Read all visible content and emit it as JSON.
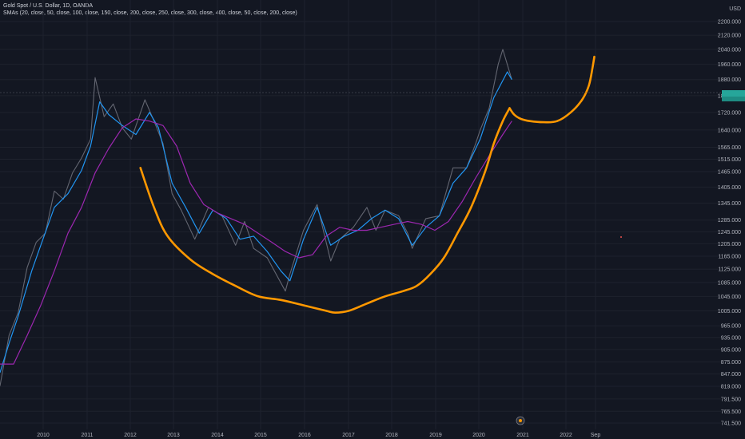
{
  "header": {
    "symbol_line": "Gold Spot / U.S. Dollar, 1D, OANDA",
    "sma_line": "SMAs (20, close, 50, close, 100, close, 150, close, 200, close, 250, close, 300, close, 400, close, 50, close, 200, close)"
  },
  "currency": "USD",
  "colors": {
    "background": "#131722",
    "price": "#787b86",
    "sma_fast": "#2196f3",
    "sma_slow": "#9c27b0",
    "cup_drawing": "#ff9800",
    "price_tag": "#26a69a"
  },
  "chart_data": {
    "type": "line",
    "title": "Gold Spot / U.S. Dollar, 1D, OANDA",
    "y_scale": "log",
    "ylim": [
      730,
      2420
    ],
    "y_ticks": [
      "741.500",
      "765.500",
      "791.500",
      "819.000",
      "847.000",
      "875.000",
      "905.000",
      "935.000",
      "965.000",
      "1005.000",
      "1045.000",
      "1085.000",
      "1125.000",
      "1165.000",
      "1205.000",
      "1245.000",
      "1285.000",
      "1345.000",
      "1405.000",
      "1465.000",
      "1515.000",
      "1565.000",
      "1640.000",
      "1720.000",
      "1800.000",
      "1880.000",
      "1960.000",
      "2040.000",
      "2120.000",
      "2200.000"
    ],
    "x_ticks": [
      "2010",
      "2011",
      "2012",
      "2013",
      "2014",
      "2015",
      "2016",
      "2017",
      "2018",
      "2019",
      "2020",
      "2021",
      "2022",
      "Sep"
    ],
    "grid": true,
    "series": [
      {
        "name": "",
        "role": "price",
        "x": [
          2009.6,
          2009.8,
          2010.0,
          2010.2,
          2010.4,
          2010.6,
          2010.8,
          2011.0,
          2011.2,
          2011.4,
          2011.6,
          2011.7,
          2011.9,
          2012.1,
          2012.3,
          2012.5,
          2012.8,
          2013.0,
          2013.2,
          2013.4,
          2013.6,
          2013.9,
          2014.2,
          2014.5,
          2014.8,
          2015.0,
          2015.2,
          2015.5,
          2015.9,
          2016.0,
          2016.3,
          2016.6,
          2016.9,
          2017.1,
          2017.4,
          2017.7,
          2017.9,
          2018.1,
          2018.4,
          2018.6,
          2018.7,
          2019.0,
          2019.3,
          2019.6,
          2019.9,
          2020.1,
          2020.2,
          2020.4,
          2020.6,
          2020.7,
          2020.9
        ],
        "y": [
          820,
          940,
          1000,
          1130,
          1210,
          1240,
          1390,
          1360,
          1460,
          1520,
          1600,
          1890,
          1700,
          1760,
          1650,
          1600,
          1780,
          1680,
          1580,
          1380,
          1320,
          1220,
          1330,
          1300,
          1200,
          1280,
          1190,
          1160,
          1060,
          1110,
          1250,
          1340,
          1150,
          1220,
          1260,
          1330,
          1250,
          1320,
          1300,
          1240,
          1190,
          1290,
          1300,
          1480,
          1480,
          1580,
          1640,
          1740,
          1960,
          2040,
          1880
        ]
      },
      {
        "name": "",
        "role": "sma_fast",
        "x": [
          2009.6,
          2009.8,
          2010.0,
          2010.3,
          2010.5,
          2010.8,
          2011.1,
          2011.4,
          2011.6,
          2011.8,
          2012.0,
          2012.3,
          2012.6,
          2012.9,
          2013.1,
          2013.4,
          2013.7,
          2014.0,
          2014.3,
          2014.6,
          2014.9,
          2015.2,
          2015.5,
          2015.8,
          2016.0,
          2016.3,
          2016.6,
          2016.9,
          2017.2,
          2017.5,
          2017.8,
          2018.1,
          2018.4,
          2018.7,
          2019.0,
          2019.3,
          2019.6,
          2019.9,
          2020.2,
          2020.5,
          2020.8,
          2020.9
        ],
        "y": [
          850,
          920,
          990,
          1120,
          1200,
          1330,
          1380,
          1470,
          1570,
          1770,
          1710,
          1660,
          1620,
          1720,
          1650,
          1420,
          1330,
          1240,
          1320,
          1290,
          1220,
          1230,
          1180,
          1120,
          1090,
          1220,
          1330,
          1200,
          1230,
          1250,
          1290,
          1320,
          1290,
          1200,
          1260,
          1300,
          1420,
          1480,
          1600,
          1790,
          1920,
          1880
        ]
      },
      {
        "name": "",
        "role": "sma_slow",
        "x": [
          2009.6,
          2009.9,
          2010.2,
          2010.5,
          2010.8,
          2011.1,
          2011.4,
          2011.7,
          2012.0,
          2012.3,
          2012.6,
          2012.9,
          2013.2,
          2013.5,
          2013.8,
          2014.1,
          2014.4,
          2014.7,
          2015.0,
          2015.3,
          2015.6,
          2015.9,
          2016.2,
          2016.5,
          2016.8,
          2017.1,
          2017.4,
          2017.7,
          2018.0,
          2018.3,
          2018.6,
          2018.9,
          2019.2,
          2019.5,
          2019.8,
          2020.1,
          2020.4,
          2020.7,
          2020.9
        ],
        "y": [
          870,
          870,
          940,
          1020,
          1120,
          1240,
          1330,
          1460,
          1560,
          1650,
          1690,
          1680,
          1660,
          1570,
          1420,
          1340,
          1310,
          1290,
          1270,
          1240,
          1210,
          1180,
          1160,
          1170,
          1230,
          1260,
          1250,
          1250,
          1260,
          1270,
          1280,
          1270,
          1250,
          1280,
          1350,
          1440,
          1530,
          1620,
          1680
        ]
      }
    ],
    "annotations": {
      "cup": {
        "x": [
          2012.7,
          2013.0,
          2013.3,
          2013.8,
          2014.3,
          2014.8,
          2015.3,
          2015.8,
          2016.3,
          2016.8,
          2017.0,
          2017.3,
          2017.7,
          2018.1,
          2018.5,
          2018.8,
          2019.1,
          2019.4,
          2019.7,
          2020.0,
          2020.3,
          2020.5,
          2020.7,
          2020.85
        ],
        "y": [
          1480,
          1330,
          1230,
          1155,
          1110,
          1075,
          1045,
          1035,
          1020,
          1005,
          1000,
          1005,
          1025,
          1045,
          1060,
          1075,
          1110,
          1160,
          1240,
          1330,
          1460,
          1580,
          1680,
          1740
        ]
      },
      "handle": {
        "x": [
          2020.85,
          2020.95,
          2021.1,
          2021.3,
          2021.6,
          2021.9,
          2022.2,
          2022.45,
          2022.6,
          2022.68,
          2022.72
        ],
        "y": [
          1740,
          1710,
          1690,
          1680,
          1675,
          1680,
          1720,
          1780,
          1850,
          1940,
          2000
        ]
      }
    }
  }
}
